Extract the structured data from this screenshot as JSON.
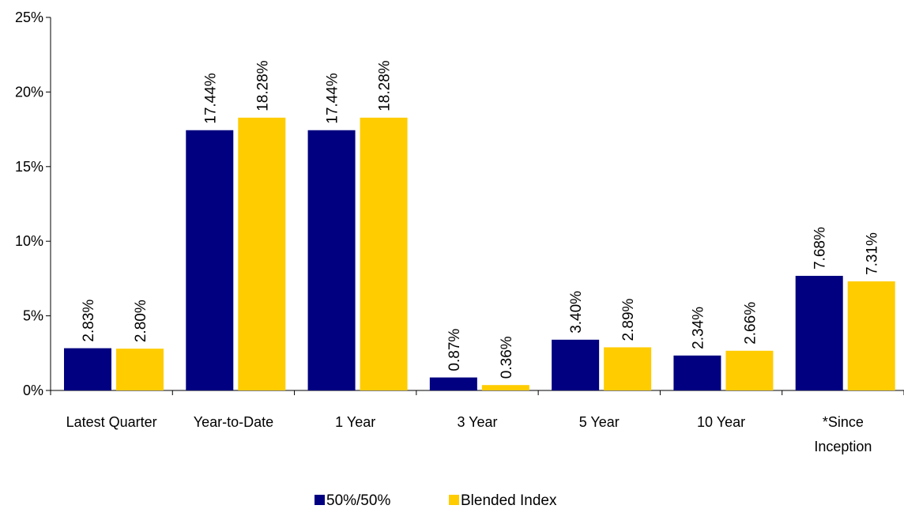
{
  "chart_data": {
    "type": "bar",
    "categories": [
      "Latest Quarter",
      "Year-to-Date",
      "1 Year",
      "3 Year",
      "5 Year",
      "10 Year",
      "*Since Inception"
    ],
    "category_lines": [
      [
        "Latest Quarter"
      ],
      [
        "Year-to-Date"
      ],
      [
        "1 Year"
      ],
      [
        "3 Year"
      ],
      [
        "5 Year"
      ],
      [
        "10 Year"
      ],
      [
        "*Since",
        "Inception"
      ]
    ],
    "series": [
      {
        "name": "50%/50%",
        "color": "#000080",
        "values": [
          2.83,
          17.44,
          17.44,
          0.87,
          3.4,
          2.34,
          7.68
        ],
        "labels": [
          "2.83%",
          "17.44%",
          "17.44%",
          "0.87%",
          "3.40%",
          "2.34%",
          "7.68%"
        ]
      },
      {
        "name": "Blended Index",
        "color": "#FFCC00",
        "values": [
          2.8,
          18.28,
          18.28,
          0.36,
          2.89,
          2.66,
          7.31
        ],
        "labels": [
          "2.80%",
          "18.28%",
          "18.28%",
          "0.36%",
          "2.89%",
          "2.66%",
          "7.31%"
        ]
      }
    ],
    "ylim": [
      0,
      25
    ],
    "yticks": [
      0,
      5,
      10,
      15,
      20,
      25
    ],
    "ytick_labels": [
      "0%",
      "5%",
      "10%",
      "15%",
      "20%",
      "25%"
    ],
    "grid": false,
    "legend_position": "bottom",
    "title": "",
    "xlabel": "",
    "ylabel": ""
  }
}
